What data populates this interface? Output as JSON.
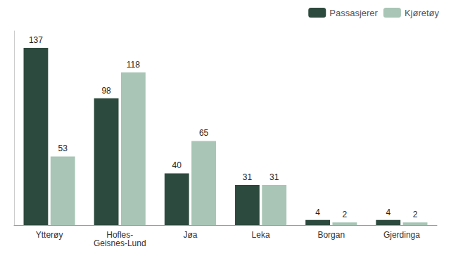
{
  "chart_data": {
    "type": "bar",
    "categories": [
      "Ytterøy",
      "Hofles-\nGeisnes-Lund",
      "Jøa",
      "Leka",
      "Borgan",
      "Gjerdinga"
    ],
    "series": [
      {
        "name": "Passasjerer",
        "color": "#2d4a3e",
        "values": [
          137,
          98,
          40,
          31,
          4,
          4
        ]
      },
      {
        "name": "Kjøretøy",
        "color": "#a8c5b5",
        "values": [
          53,
          118,
          65,
          31,
          2,
          2
        ]
      }
    ],
    "ylim": [
      0,
      150
    ],
    "grid": false,
    "legend": "upper right",
    "data_labels": true,
    "tick_labels": "x"
  }
}
